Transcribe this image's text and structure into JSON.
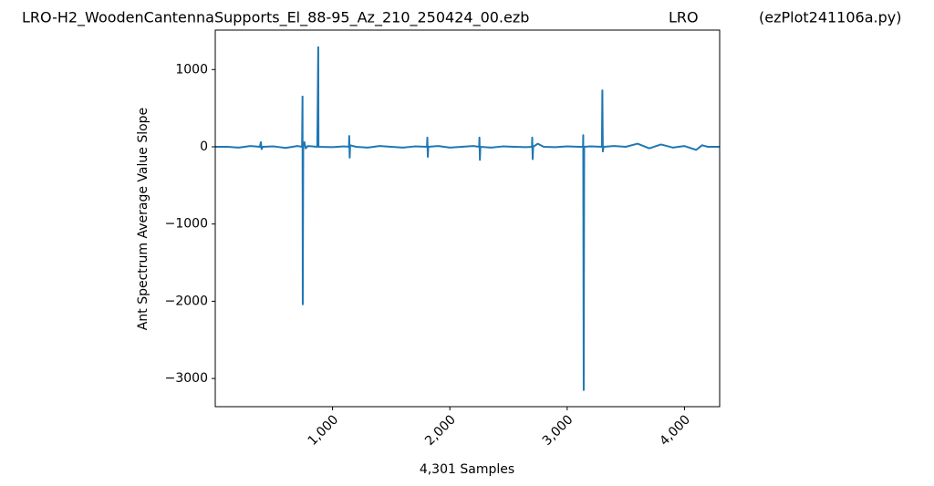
{
  "chart_data": {
    "type": "line",
    "title": [
      "LRO-H2_WoodenCantennaSupports_El_88-95_Az_210_250424_00.ezb",
      "LRO",
      "(ezPlot241106a.py)"
    ],
    "x_label": "4,301 Samples",
    "y_label": "Ant Spectrum Average Value Slope",
    "x": [
      0,
      100,
      200,
      300,
      380,
      389,
      395,
      405,
      500,
      600,
      700,
      740,
      744,
      746,
      750,
      760,
      770,
      790,
      870,
      878,
      880,
      1000,
      1100,
      1140,
      1142,
      1146,
      1150,
      1200,
      1300,
      1400,
      1500,
      1600,
      1700,
      1805,
      1808,
      1812,
      1816,
      1900,
      2000,
      2100,
      2200,
      2250,
      2252,
      2256,
      2260,
      2350,
      2450,
      2550,
      2650,
      2700,
      2702,
      2706,
      2710,
      2750,
      2800,
      2900,
      3000,
      3100,
      3135,
      3137,
      3141,
      3145,
      3200,
      3296,
      3300,
      3304,
      3310,
      3400,
      3500,
      3600,
      3700,
      3800,
      3900,
      4000,
      4100,
      4150,
      4200,
      4300
    ],
    "series": [
      {
        "color": "#1f77b4",
        "values": [
          0,
          0,
          -10,
          10,
          0,
          60,
          -30,
          0,
          5,
          -15,
          10,
          0,
          650,
          -2040,
          0,
          60,
          -20,
          10,
          0,
          1290,
          0,
          -5,
          5,
          0,
          140,
          -140,
          20,
          0,
          -10,
          10,
          0,
          -10,
          5,
          0,
          120,
          -130,
          0,
          10,
          -10,
          0,
          10,
          0,
          120,
          -170,
          0,
          -10,
          5,
          0,
          -5,
          0,
          120,
          -160,
          0,
          40,
          0,
          -5,
          5,
          0,
          0,
          150,
          -3150,
          0,
          5,
          0,
          730,
          -60,
          0,
          10,
          0,
          40,
          -20,
          30,
          -10,
          10,
          -40,
          20,
          0,
          0
        ]
      }
    ],
    "xlim": [
      0,
      4300
    ],
    "ylim": [
      -3365,
      1511
    ],
    "xticks": [
      {
        "value": 1000,
        "label": "1,000"
      },
      {
        "value": 2000,
        "label": "2,000"
      },
      {
        "value": 3000,
        "label": "3,000"
      },
      {
        "value": 4000,
        "label": "4,000"
      }
    ],
    "yticks": [
      {
        "value": -3000,
        "label": "−3000"
      },
      {
        "value": -2000,
        "label": "−2000"
      },
      {
        "value": -1000,
        "label": "−1000"
      },
      0,
      1000
    ]
  }
}
